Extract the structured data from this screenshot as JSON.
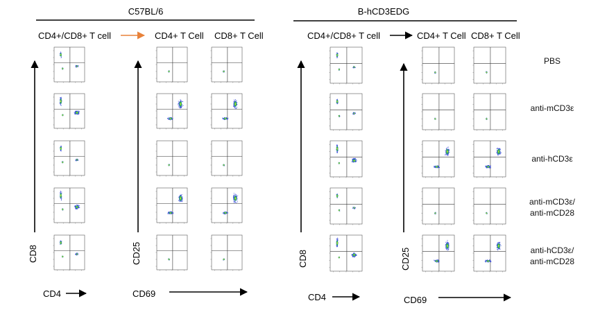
{
  "chart_data": {
    "type": "scatter",
    "subtype": "flow-cytometry-dot-plot-grid",
    "colors": {
      "accent_arrow": "#e8823a",
      "line": "#000000",
      "density_low": "#3b4fd8",
      "density_mid": "#27c43f",
      "density_high": "#e3e02c"
    },
    "conditions": [
      "PBS",
      "anti-mCD3ε",
      "anti-hCD3ε",
      "anti-mCD3ε/\nanti-mCD28",
      "anti-hCD3ε/\nanti-mCD28"
    ],
    "panels": [
      {
        "strain": "C57BL/6",
        "gating_header": "CD4+/CD8+ T cell",
        "activation_headers": [
          "CD4+ T Cell",
          "CD8+ T Cell"
        ],
        "gating_axes": {
          "x": "CD4",
          "y": "CD8"
        },
        "activation_axes": {
          "x": "CD69",
          "y": "CD25"
        }
      },
      {
        "strain": "B-hCD3EDG",
        "gating_header": "CD4+/CD8+ T cell",
        "activation_headers": [
          "CD4+ T Cell",
          "CD8+ T Cell"
        ],
        "gating_axes": {
          "x": "CD4",
          "y": "CD8"
        },
        "activation_axes": {
          "x": "CD69",
          "y": "CD25"
        }
      }
    ],
    "activation_level": {
      "C57BL/6": [
        0,
        1,
        0,
        1,
        0
      ],
      "B-hCD3EDG": [
        0,
        0,
        1,
        0,
        1
      ]
    }
  }
}
